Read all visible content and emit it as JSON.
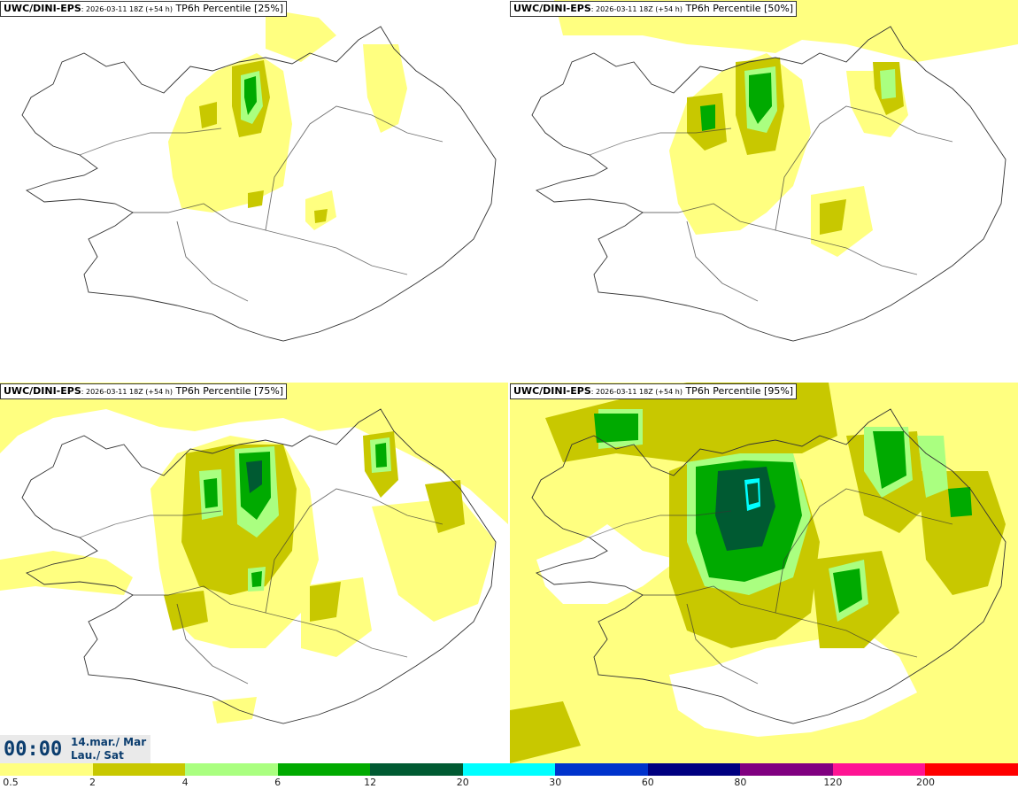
{
  "panels": [
    {
      "model": "UWC/DINI-EPS",
      "run": ": 2026-03-11 18Z (+54 h)",
      "product": " TP6h Percentile [25%]"
    },
    {
      "model": "UWC/DINI-EPS",
      "run": ": 2026-03-11 18Z (+54 h)",
      "product": " TP6h Percentile [50%]"
    },
    {
      "model": "UWC/DINI-EPS",
      "run": ": 2026-03-11 18Z (+54 h)",
      "product": " TP6h Percentile [75%]"
    },
    {
      "model": "UWC/DINI-EPS",
      "run": ": 2026-03-11 18Z (+54 h)",
      "product": " TP6h Percentile [95%]"
    }
  ],
  "valid_time": {
    "time": "00:00",
    "date_line1": "14.mar./ Mar",
    "date_line2": "Lau./ Sat"
  },
  "colorbar": {
    "colors": [
      "#ffff80",
      "#c8c800",
      "#aaff80",
      "#00aa00",
      "#005a32",
      "#00ffff",
      "#0033cc",
      "#000080",
      "#800080",
      "#ff1493",
      "#ff0000"
    ],
    "ticks": [
      "0.5",
      "2",
      "4",
      "6",
      "12",
      "20",
      "30",
      "60",
      "80",
      "120",
      "200"
    ]
  }
}
